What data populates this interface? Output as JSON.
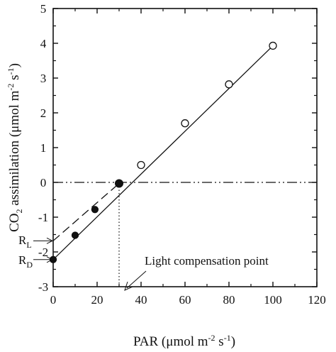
{
  "chart_data": {
    "type": "scatter",
    "xlim": [
      0,
      120
    ],
    "ylim": [
      -3,
      5
    ],
    "x_ticks": [
      "0",
      "20",
      "40",
      "60",
      "80",
      "100",
      "120"
    ],
    "y_ticks": [
      "-3",
      "-2",
      "-1",
      "0",
      "1",
      "2",
      "3",
      "4",
      "5"
    ],
    "xlabel": {
      "main": "PAR (μmol m",
      "sup1": "-2",
      "mid": " s",
      "sup2": "-1",
      "end": ")"
    },
    "ylabel": {
      "co": "CO",
      "sub": "2",
      "main": " assimilation (μmol m",
      "sup1": "-2",
      "mid": " s",
      "sup2": "-1",
      "end": ")"
    },
    "series": [
      {
        "marker": "filled-circle",
        "x": [
          0,
          10,
          19,
          30
        ],
        "y": [
          -2.22,
          -1.52,
          -0.78,
          -0.03
        ]
      },
      {
        "marker": "open-circle",
        "x": [
          40,
          60,
          80,
          100
        ],
        "y": [
          0.5,
          1.7,
          2.82,
          3.93
        ]
      }
    ],
    "lines": [
      {
        "style": "solid",
        "x": [
          0,
          100
        ],
        "y": [
          -2.22,
          3.93
        ]
      },
      {
        "style": "dashed",
        "x": [
          0,
          30
        ],
        "y": [
          -1.68,
          -0.03
        ]
      },
      {
        "style": "dash-dot",
        "x": [
          0,
          120
        ],
        "y": [
          0,
          0
        ]
      },
      {
        "style": "dotted",
        "x": [
          30,
          30
        ],
        "y": [
          -0.03,
          -3
        ]
      }
    ],
    "annotations": {
      "rl": {
        "main": "R",
        "sub": "L"
      },
      "rd": {
        "main": "R",
        "sub": "D"
      },
      "lcp": "Light compensation point"
    },
    "rl_value": -1.68,
    "rd_value": -2.22
  }
}
